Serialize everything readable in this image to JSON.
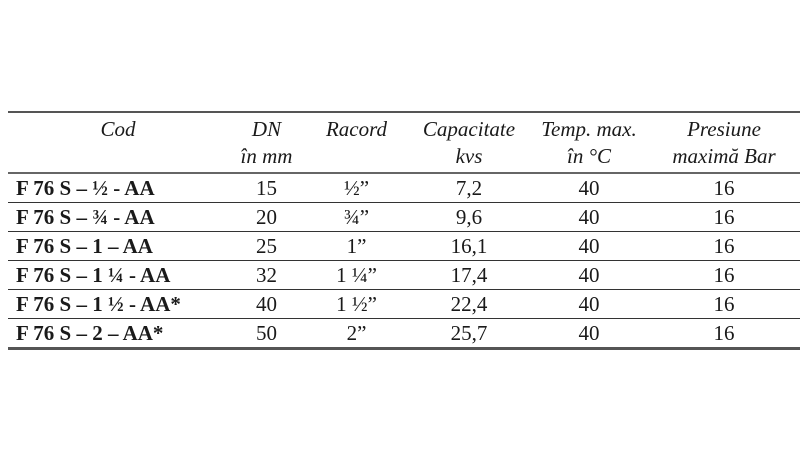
{
  "table": {
    "headers": [
      [
        "Cod",
        ""
      ],
      [
        "DN",
        "în mm"
      ],
      [
        "Racord",
        ""
      ],
      [
        "Capacitate",
        "kvs"
      ],
      [
        "Temp. max.",
        "în °C"
      ],
      [
        "Presiune",
        "maximă Bar"
      ]
    ],
    "rows": [
      [
        "F 76 S – ½  - AA",
        "15",
        "½”",
        "7,2",
        "40",
        "16"
      ],
      [
        "F 76 S – ¾ - AA",
        "20",
        "¾”",
        "9,6",
        "40",
        "16"
      ],
      [
        "F 76 S – 1 – AA",
        "25",
        "1”",
        "16,1",
        "40",
        "16"
      ],
      [
        "F 76 S – 1 ¼ - AA",
        "32",
        "1 ¼”",
        "17,4",
        "40",
        "16"
      ],
      [
        "F 76 S – 1 ½ - AA*",
        "40",
        "1 ½”",
        "22,4",
        "40",
        "16"
      ],
      [
        "F 76 S – 2 – AA*",
        "50",
        "2”",
        "25,7",
        "40",
        "16"
      ]
    ]
  }
}
